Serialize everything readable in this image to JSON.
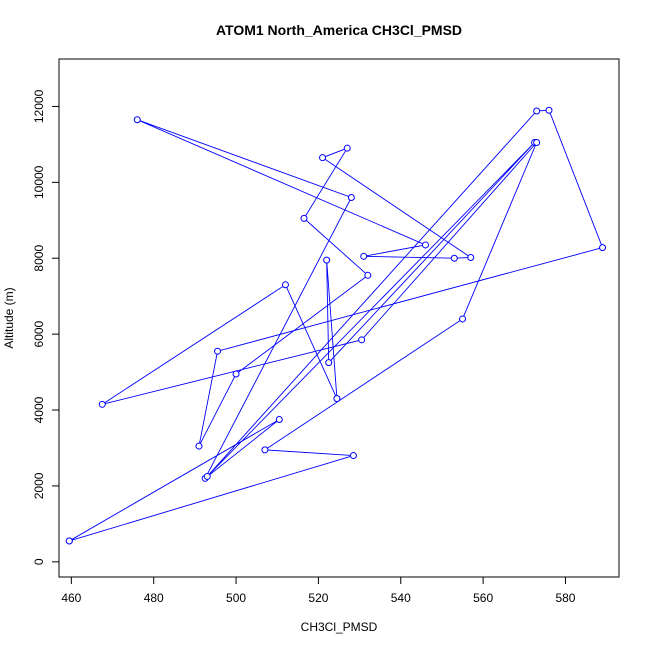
{
  "chart_data": {
    "type": "line",
    "title": "ATOM1 North_America CH3Cl_PMSD",
    "xlabel": "CH3Cl_PMSD",
    "ylabel": "Altitude (m)",
    "xlim": [
      457,
      593
    ],
    "ylim": [
      -400,
      13250
    ],
    "xticks": [
      460,
      480,
      500,
      520,
      540,
      560,
      580
    ],
    "yticks": [
      0,
      2000,
      4000,
      6000,
      8000,
      10000,
      12000
    ],
    "series_color": "#0000ff",
    "points": [
      {
        "x": 459.5,
        "y": 550
      },
      {
        "x": 510.5,
        "y": 3750
      },
      {
        "x": 492.5,
        "y": 2200
      },
      {
        "x": 528.0,
        "y": 9600
      },
      {
        "x": 476.0,
        "y": 11650
      },
      {
        "x": 546.0,
        "y": 8350
      },
      {
        "x": 531.0,
        "y": 8050
      },
      {
        "x": 553.0,
        "y": 8000
      },
      {
        "x": 557.0,
        "y": 8020
      },
      {
        "x": 521.0,
        "y": 10650
      },
      {
        "x": 527.0,
        "y": 10900
      },
      {
        "x": 516.5,
        "y": 9050
      },
      {
        "x": 532.0,
        "y": 7550
      },
      {
        "x": 500.0,
        "y": 4950
      },
      {
        "x": 491.0,
        "y": 3050
      },
      {
        "x": 495.5,
        "y": 5550
      },
      {
        "x": 589.0,
        "y": 8280
      },
      {
        "x": 576.0,
        "y": 11900
      },
      {
        "x": 573.0,
        "y": 11880
      },
      {
        "x": 493.0,
        "y": 2250
      },
      {
        "x": 572.5,
        "y": 11050
      },
      {
        "x": 522.5,
        "y": 5250
      },
      {
        "x": 522.0,
        "y": 7950
      },
      {
        "x": 524.5,
        "y": 4300
      },
      {
        "x": 512.0,
        "y": 7300
      },
      {
        "x": 467.5,
        "y": 4150
      },
      {
        "x": 530.5,
        "y": 5850
      },
      {
        "x": 573.0,
        "y": 11050
      },
      {
        "x": 555.0,
        "y": 6400
      },
      {
        "x": 507.0,
        "y": 2950
      },
      {
        "x": 528.5,
        "y": 2800
      },
      {
        "x": 459.5,
        "y": 550
      }
    ]
  }
}
